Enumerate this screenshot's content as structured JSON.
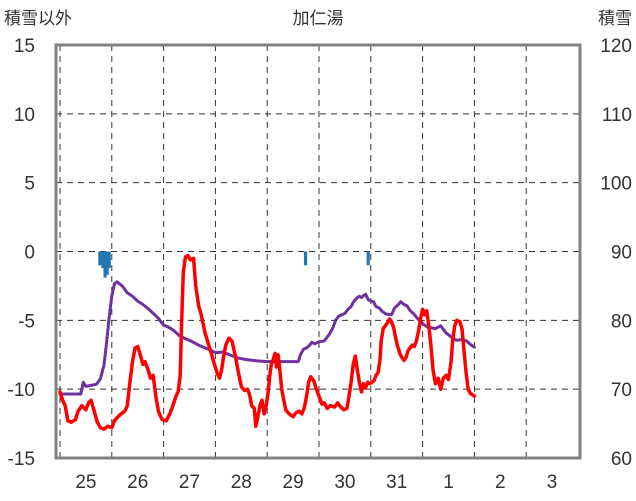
{
  "chart_data": {
    "type": "line",
    "title": "加仁湯",
    "left_axis_label": "積雪以外",
    "right_axis_label": "積雪",
    "left_ylim": [
      -15,
      15
    ],
    "left_yticks": [
      "15",
      "10",
      "5",
      "0",
      "-5",
      "-10",
      "-15"
    ],
    "right_ylim": [
      60,
      120
    ],
    "right_yticks": [
      "120",
      "110",
      "100",
      "90",
      "80",
      "70",
      "60"
    ],
    "x_range_days": [
      0,
      9
    ],
    "x_tick_labels": [
      "25",
      "26",
      "27",
      "28",
      "29",
      "30",
      "31",
      "1",
      "2",
      "3"
    ],
    "grid": true,
    "colors": {
      "temperature": "#ff0000",
      "snow_depth": "#7030a0",
      "precipitation": "#1f77b4",
      "frame": "#808080"
    },
    "series": [
      {
        "axis": "left",
        "color": "#ff0000",
        "points": [
          [
            0.0,
            -10.2
          ],
          [
            0.05,
            -10.8
          ],
          [
            0.1,
            -11.2
          ],
          [
            0.15,
            -12.3
          ],
          [
            0.22,
            -12.4
          ],
          [
            0.3,
            -12.2
          ],
          [
            0.35,
            -11.6
          ],
          [
            0.42,
            -11.2
          ],
          [
            0.5,
            -11.5
          ],
          [
            0.55,
            -11.0
          ],
          [
            0.6,
            -10.8
          ],
          [
            0.66,
            -11.6
          ],
          [
            0.72,
            -12.4
          ],
          [
            0.78,
            -12.8
          ],
          [
            0.85,
            -12.9
          ],
          [
            0.92,
            -12.7
          ],
          [
            1.0,
            -12.8
          ],
          [
            1.05,
            -12.3
          ],
          [
            1.12,
            -12.0
          ],
          [
            1.18,
            -11.8
          ],
          [
            1.25,
            -11.6
          ],
          [
            1.3,
            -11.2
          ],
          [
            1.35,
            -9.5
          ],
          [
            1.4,
            -8.0
          ],
          [
            1.45,
            -7.0
          ],
          [
            1.5,
            -6.9
          ],
          [
            1.55,
            -7.5
          ],
          [
            1.6,
            -8.2
          ],
          [
            1.64,
            -8.0
          ],
          [
            1.7,
            -8.6
          ],
          [
            1.75,
            -9.2
          ],
          [
            1.8,
            -9.0
          ],
          [
            1.85,
            -10.5
          ],
          [
            1.9,
            -11.6
          ],
          [
            1.97,
            -12.2
          ],
          [
            2.05,
            -12.3
          ],
          [
            2.12,
            -11.8
          ],
          [
            2.18,
            -11.2
          ],
          [
            2.24,
            -10.5
          ],
          [
            2.28,
            -10.2
          ],
          [
            2.32,
            -9.0
          ],
          [
            2.35,
            -5.0
          ],
          [
            2.38,
            -1.5
          ],
          [
            2.42,
            -0.4
          ],
          [
            2.47,
            -0.3
          ],
          [
            2.52,
            -0.6
          ],
          [
            2.58,
            -0.5
          ],
          [
            2.62,
            -2.5
          ],
          [
            2.68,
            -4.0
          ],
          [
            2.72,
            -4.5
          ],
          [
            2.76,
            -5.2
          ],
          [
            2.8,
            -5.9
          ],
          [
            2.84,
            -6.4
          ],
          [
            2.88,
            -6.9
          ],
          [
            2.92,
            -7.4
          ],
          [
            2.98,
            -8.2
          ],
          [
            3.04,
            -8.9
          ],
          [
            3.08,
            -9.2
          ],
          [
            3.12,
            -8.6
          ],
          [
            3.16,
            -7.6
          ],
          [
            3.2,
            -6.8
          ],
          [
            3.26,
            -6.3
          ],
          [
            3.32,
            -6.5
          ],
          [
            3.38,
            -7.5
          ],
          [
            3.44,
            -8.7
          ],
          [
            3.5,
            -9.8
          ],
          [
            3.56,
            -10.1
          ],
          [
            3.62,
            -10.0
          ],
          [
            3.66,
            -10.4
          ],
          [
            3.7,
            -11.2
          ],
          [
            3.75,
            -11.4
          ],
          [
            3.78,
            -12.7
          ],
          [
            3.82,
            -12.0
          ],
          [
            3.86,
            -11.2
          ],
          [
            3.9,
            -10.8
          ],
          [
            3.94,
            -11.8
          ],
          [
            3.98,
            -11.2
          ],
          [
            4.02,
            -10.2
          ],
          [
            4.05,
            -9.0
          ],
          [
            4.08,
            -8.2
          ],
          [
            4.12,
            -7.8
          ],
          [
            4.15,
            -7.4
          ],
          [
            4.18,
            -8.4
          ],
          [
            4.21,
            -7.5
          ],
          [
            4.25,
            -8.8
          ],
          [
            4.28,
            -10.0
          ],
          [
            4.32,
            -10.8
          ],
          [
            4.36,
            -11.5
          ],
          [
            4.4,
            -11.7
          ],
          [
            4.46,
            -11.9
          ],
          [
            4.5,
            -12.0
          ],
          [
            4.56,
            -11.7
          ],
          [
            4.62,
            -11.6
          ],
          [
            4.67,
            -11.8
          ],
          [
            4.72,
            -11.3
          ],
          [
            4.76,
            -10.5
          ],
          [
            4.8,
            -9.5
          ],
          [
            4.84,
            -9.1
          ],
          [
            4.9,
            -9.4
          ],
          [
            4.95,
            -10.0
          ],
          [
            5.0,
            -10.5
          ],
          [
            5.06,
            -11.1
          ],
          [
            5.1,
            -11.0
          ],
          [
            5.16,
            -11.4
          ],
          [
            5.22,
            -11.2
          ],
          [
            5.3,
            -11.3
          ],
          [
            5.36,
            -11.0
          ],
          [
            5.42,
            -11.3
          ],
          [
            5.48,
            -11.5
          ],
          [
            5.54,
            -11.4
          ],
          [
            5.58,
            -10.5
          ],
          [
            5.62,
            -9.5
          ],
          [
            5.66,
            -8.2
          ],
          [
            5.7,
            -7.6
          ],
          [
            5.74,
            -8.6
          ],
          [
            5.78,
            -9.5
          ],
          [
            5.82,
            -10.2
          ],
          [
            5.86,
            -9.6
          ],
          [
            5.9,
            -9.9
          ],
          [
            5.94,
            -9.5
          ],
          [
            5.98,
            -9.6
          ],
          [
            6.02,
            -9.5
          ],
          [
            6.06,
            -9.4
          ],
          [
            6.1,
            -9.0
          ],
          [
            6.14,
            -8.8
          ],
          [
            6.18,
            -7.8
          ],
          [
            6.2,
            -6.5
          ],
          [
            6.24,
            -5.6
          ],
          [
            6.28,
            -5.4
          ],
          [
            6.32,
            -5.2
          ],
          [
            6.36,
            -4.9
          ],
          [
            6.4,
            -5.1
          ],
          [
            6.44,
            -5.5
          ],
          [
            6.48,
            -6.3
          ],
          [
            6.52,
            -6.9
          ],
          [
            6.56,
            -7.4
          ],
          [
            6.6,
            -7.7
          ],
          [
            6.64,
            -7.9
          ],
          [
            6.68,
            -7.7
          ],
          [
            6.72,
            -7.2
          ],
          [
            6.76,
            -7.0
          ],
          [
            6.8,
            -6.8
          ],
          [
            6.84,
            -6.9
          ],
          [
            6.88,
            -6.5
          ],
          [
            6.92,
            -5.8
          ],
          [
            6.96,
            -4.9
          ],
          [
            7.0,
            -4.2
          ],
          [
            7.04,
            -4.6
          ],
          [
            7.08,
            -4.3
          ],
          [
            7.12,
            -5.4
          ],
          [
            7.16,
            -6.8
          ],
          [
            7.2,
            -8.6
          ],
          [
            7.25,
            -9.6
          ],
          [
            7.3,
            -9.2
          ],
          [
            7.35,
            -10.0
          ],
          [
            7.4,
            -9.2
          ],
          [
            7.45,
            -9.0
          ],
          [
            7.5,
            -9.3
          ],
          [
            7.55,
            -8.0
          ],
          [
            7.58,
            -6.5
          ],
          [
            7.62,
            -5.4
          ],
          [
            7.66,
            -5.0
          ],
          [
            7.72,
            -5.1
          ],
          [
            7.76,
            -5.6
          ],
          [
            7.8,
            -7.2
          ],
          [
            7.84,
            -8.8
          ],
          [
            7.88,
            -10.0
          ],
          [
            7.92,
            -10.3
          ],
          [
            7.96,
            -10.4
          ],
          [
            8.0,
            -10.5
          ]
        ]
      },
      {
        "axis": "right",
        "color": "#7030a0",
        "points": [
          [
            0.0,
            69.3
          ],
          [
            0.4,
            69.3
          ],
          [
            0.45,
            71.0
          ],
          [
            0.5,
            70.4
          ],
          [
            0.7,
            70.7
          ],
          [
            0.78,
            71.5
          ],
          [
            0.85,
            73.5
          ],
          [
            0.9,
            76.8
          ],
          [
            0.95,
            80.5
          ],
          [
            1.0,
            83.5
          ],
          [
            1.05,
            85.3
          ],
          [
            1.1,
            85.6
          ],
          [
            1.2,
            85.0
          ],
          [
            1.3,
            84.0
          ],
          [
            1.4,
            83.5
          ],
          [
            1.5,
            82.8
          ],
          [
            1.6,
            82.3
          ],
          [
            1.7,
            81.7
          ],
          [
            1.8,
            81.0
          ],
          [
            1.9,
            80.3
          ],
          [
            2.0,
            79.3
          ],
          [
            2.1,
            79.0
          ],
          [
            2.2,
            78.5
          ],
          [
            2.3,
            77.8
          ],
          [
            2.4,
            77.4
          ],
          [
            2.5,
            77.1
          ],
          [
            2.6,
            76.7
          ],
          [
            2.7,
            76.3
          ],
          [
            2.8,
            76.0
          ],
          [
            2.9,
            75.7
          ],
          [
            3.0,
            75.3
          ],
          [
            3.15,
            75.4
          ],
          [
            3.3,
            74.9
          ],
          [
            3.45,
            74.5
          ],
          [
            3.6,
            74.3
          ],
          [
            3.8,
            74.1
          ],
          [
            4.0,
            74.0
          ],
          [
            4.2,
            74.0
          ],
          [
            4.4,
            74.0
          ],
          [
            4.6,
            74.0
          ],
          [
            4.64,
            75.0
          ],
          [
            4.7,
            75.8
          ],
          [
            4.76,
            76.0
          ],
          [
            4.82,
            76.4
          ],
          [
            4.86,
            76.8
          ],
          [
            4.92,
            76.6
          ],
          [
            5.0,
            76.9
          ],
          [
            5.1,
            77.0
          ],
          [
            5.2,
            78.0
          ],
          [
            5.26,
            78.8
          ],
          [
            5.32,
            80.0
          ],
          [
            5.38,
            80.6
          ],
          [
            5.44,
            80.8
          ],
          [
            5.5,
            81.0
          ],
          [
            5.56,
            81.6
          ],
          [
            5.62,
            82.0
          ],
          [
            5.66,
            82.6
          ],
          [
            5.7,
            83.0
          ],
          [
            5.74,
            83.3
          ],
          [
            5.78,
            83.5
          ],
          [
            5.82,
            83.3
          ],
          [
            5.86,
            83.6
          ],
          [
            5.9,
            83.8
          ],
          [
            5.95,
            83.0
          ],
          [
            6.0,
            82.8
          ],
          [
            6.05,
            82.7
          ],
          [
            6.1,
            82.0
          ],
          [
            6.16,
            81.8
          ],
          [
            6.22,
            81.3
          ],
          [
            6.3,
            80.9
          ],
          [
            6.4,
            80.8
          ],
          [
            6.46,
            81.8
          ],
          [
            6.52,
            82.2
          ],
          [
            6.58,
            82.7
          ],
          [
            6.64,
            82.3
          ],
          [
            6.7,
            82.1
          ],
          [
            6.76,
            81.4
          ],
          [
            6.82,
            81.0
          ],
          [
            6.9,
            80.3
          ],
          [
            7.0,
            79.5
          ],
          [
            7.1,
            79.0
          ],
          [
            7.25,
            78.8
          ],
          [
            7.35,
            79.2
          ],
          [
            7.45,
            78.2
          ],
          [
            7.55,
            77.6
          ],
          [
            7.65,
            77.1
          ],
          [
            7.75,
            77.2
          ],
          [
            7.85,
            77.0
          ],
          [
            7.92,
            76.5
          ],
          [
            8.0,
            76.1
          ]
        ]
      },
      {
        "axis": "left",
        "color": "#1f77b4",
        "type": "bar",
        "bars": [
          [
            0.77,
            -1.0
          ],
          [
            0.83,
            -1.2
          ],
          [
            0.87,
            -1.9
          ],
          [
            0.91,
            -1.7
          ],
          [
            0.95,
            -1.2
          ],
          [
            4.74,
            -1.0
          ],
          [
            5.95,
            -1.0
          ]
        ]
      }
    ]
  }
}
